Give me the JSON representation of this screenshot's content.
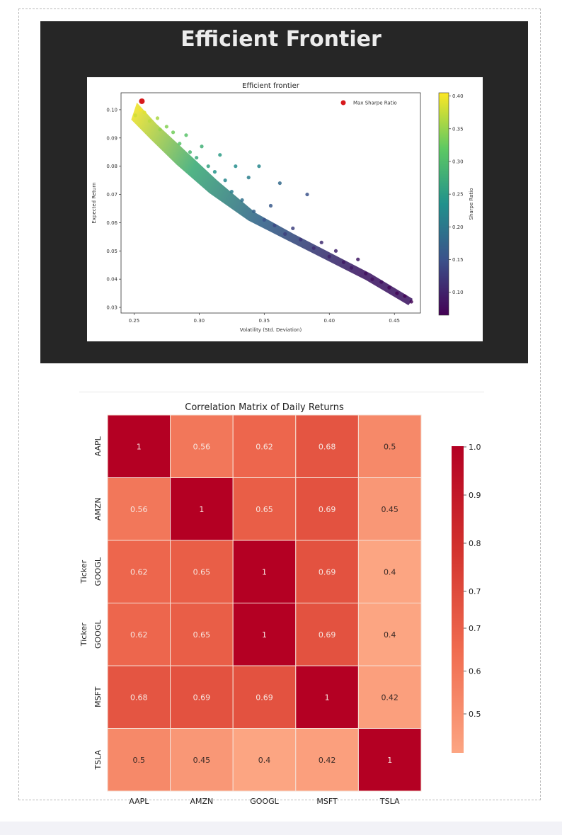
{
  "page": {
    "title": "Efficient Frontier"
  },
  "chart_data": [
    {
      "type": "scatter",
      "title": "Efficient frontier",
      "xlabel": "Volatility (Std. Deviation)",
      "ylabel": "Expected Return",
      "xlim": [
        0.24,
        0.47
      ],
      "ylim": [
        0.028,
        0.106
      ],
      "x_ticks": [
        "0.25",
        "0.30",
        "0.35",
        "0.40",
        "0.45"
      ],
      "x_tick_values": [
        0.25,
        0.3,
        0.35,
        0.4,
        0.45
      ],
      "y_ticks": [
        "0.03",
        "0.04",
        "0.05",
        "0.06",
        "0.07",
        "0.08",
        "0.09",
        "0.10"
      ],
      "y_tick_values": [
        0.03,
        0.04,
        0.05,
        0.06,
        0.07,
        0.08,
        0.09,
        0.1
      ],
      "colormap": "viridis",
      "colorbar": {
        "label": "Sharpe Ratio",
        "range": [
          0.065,
          0.405
        ],
        "ticks": [
          "0.10",
          "0.15",
          "0.20",
          "0.25",
          "0.30",
          "0.35",
          "0.40"
        ],
        "tick_values": [
          0.1,
          0.15,
          0.2,
          0.25,
          0.3,
          0.35,
          0.4
        ]
      },
      "legend": {
        "placement": "top-right",
        "entries": [
          "Max Sharpe Ratio"
        ]
      },
      "max_sharpe_point": {
        "x": 0.256,
        "y": 0.103,
        "color": "#d7191c"
      },
      "frontier": [
        {
          "x": 0.25,
          "y": 0.099
        },
        {
          "x": 0.265,
          "y": 0.092
        },
        {
          "x": 0.285,
          "y": 0.083
        },
        {
          "x": 0.31,
          "y": 0.073
        },
        {
          "x": 0.34,
          "y": 0.062
        },
        {
          "x": 0.37,
          "y": 0.055
        },
        {
          "x": 0.4,
          "y": 0.048
        },
        {
          "x": 0.43,
          "y": 0.041
        },
        {
          "x": 0.463,
          "y": 0.032
        }
      ],
      "points": [
        {
          "x": 0.251,
          "y": 0.098,
          "sharpe": 0.38
        },
        {
          "x": 0.255,
          "y": 0.1,
          "sharpe": 0.4
        },
        {
          "x": 0.258,
          "y": 0.099,
          "sharpe": 0.39
        },
        {
          "x": 0.262,
          "y": 0.096,
          "sharpe": 0.37
        },
        {
          "x": 0.268,
          "y": 0.097,
          "sharpe": 0.36
        },
        {
          "x": 0.27,
          "y": 0.093,
          "sharpe": 0.35
        },
        {
          "x": 0.275,
          "y": 0.094,
          "sharpe": 0.34
        },
        {
          "x": 0.28,
          "y": 0.092,
          "sharpe": 0.33
        },
        {
          "x": 0.285,
          "y": 0.088,
          "sharpe": 0.31
        },
        {
          "x": 0.29,
          "y": 0.091,
          "sharpe": 0.31
        },
        {
          "x": 0.293,
          "y": 0.085,
          "sharpe": 0.29
        },
        {
          "x": 0.298,
          "y": 0.083,
          "sharpe": 0.27
        },
        {
          "x": 0.302,
          "y": 0.087,
          "sharpe": 0.28
        },
        {
          "x": 0.307,
          "y": 0.08,
          "sharpe": 0.26
        },
        {
          "x": 0.312,
          "y": 0.078,
          "sharpe": 0.24
        },
        {
          "x": 0.316,
          "y": 0.084,
          "sharpe": 0.25
        },
        {
          "x": 0.32,
          "y": 0.075,
          "sharpe": 0.22
        },
        {
          "x": 0.325,
          "y": 0.071,
          "sharpe": 0.21
        },
        {
          "x": 0.328,
          "y": 0.08,
          "sharpe": 0.23
        },
        {
          "x": 0.333,
          "y": 0.068,
          "sharpe": 0.19
        },
        {
          "x": 0.338,
          "y": 0.076,
          "sharpe": 0.21
        },
        {
          "x": 0.342,
          "y": 0.064,
          "sharpe": 0.17
        },
        {
          "x": 0.346,
          "y": 0.08,
          "sharpe": 0.22
        },
        {
          "x": 0.35,
          "y": 0.061,
          "sharpe": 0.15
        },
        {
          "x": 0.355,
          "y": 0.066,
          "sharpe": 0.16
        },
        {
          "x": 0.358,
          "y": 0.059,
          "sharpe": 0.14
        },
        {
          "x": 0.362,
          "y": 0.074,
          "sharpe": 0.18
        },
        {
          "x": 0.366,
          "y": 0.056,
          "sharpe": 0.13
        },
        {
          "x": 0.372,
          "y": 0.058,
          "sharpe": 0.13
        },
        {
          "x": 0.378,
          "y": 0.054,
          "sharpe": 0.12
        },
        {
          "x": 0.383,
          "y": 0.07,
          "sharpe": 0.15
        },
        {
          "x": 0.388,
          "y": 0.051,
          "sharpe": 0.11
        },
        {
          "x": 0.394,
          "y": 0.053,
          "sharpe": 0.11
        },
        {
          "x": 0.4,
          "y": 0.048,
          "sharpe": 0.1
        },
        {
          "x": 0.405,
          "y": 0.05,
          "sharpe": 0.1
        },
        {
          "x": 0.411,
          "y": 0.046,
          "sharpe": 0.09
        },
        {
          "x": 0.417,
          "y": 0.044,
          "sharpe": 0.09
        },
        {
          "x": 0.422,
          "y": 0.047,
          "sharpe": 0.09
        },
        {
          "x": 0.428,
          "y": 0.042,
          "sharpe": 0.08
        },
        {
          "x": 0.433,
          "y": 0.04,
          "sharpe": 0.08
        },
        {
          "x": 0.44,
          "y": 0.039,
          "sharpe": 0.08
        },
        {
          "x": 0.446,
          "y": 0.037,
          "sharpe": 0.07
        },
        {
          "x": 0.452,
          "y": 0.035,
          "sharpe": 0.07
        },
        {
          "x": 0.458,
          "y": 0.034,
          "sharpe": 0.07
        },
        {
          "x": 0.463,
          "y": 0.032,
          "sharpe": 0.07
        }
      ]
    },
    {
      "type": "heatmap",
      "title": "Correlation Matrix of Daily Returns",
      "ylabel": "Ticker",
      "colormap": "reds",
      "row_labels": [
        "AAPL",
        "AMZN",
        "GOOGL",
        "GOOGL",
        "MSFT",
        "TSLA"
      ],
      "col_labels": [
        "AAPL",
        "AMZN",
        "GOOGL",
        "MSFT",
        "TSLA"
      ],
      "matrix": [
        [
          1,
          0.56,
          0.62,
          0.68,
          0.5
        ],
        [
          0.56,
          1,
          0.65,
          0.69,
          0.45
        ],
        [
          0.62,
          0.65,
          1,
          0.69,
          0.4
        ],
        [
          0.62,
          0.65,
          1,
          0.69,
          0.4
        ],
        [
          0.68,
          0.69,
          0.69,
          1,
          0.42
        ],
        [
          0.5,
          0.45,
          0.4,
          0.42,
          1
        ]
      ],
      "colorbar": {
        "range": [
          0.4,
          1.0
        ],
        "ticks_upper": [
          "1.0",
          "0.9",
          "0.8",
          "0.7"
        ],
        "tick_values_upper": [
          1.0,
          0.9,
          0.8,
          0.7
        ],
        "ticks_lower": [
          "0.7",
          "0.6",
          "0.5"
        ],
        "tick_values_lower": [
          0.7,
          0.6,
          0.5
        ]
      }
    }
  ]
}
